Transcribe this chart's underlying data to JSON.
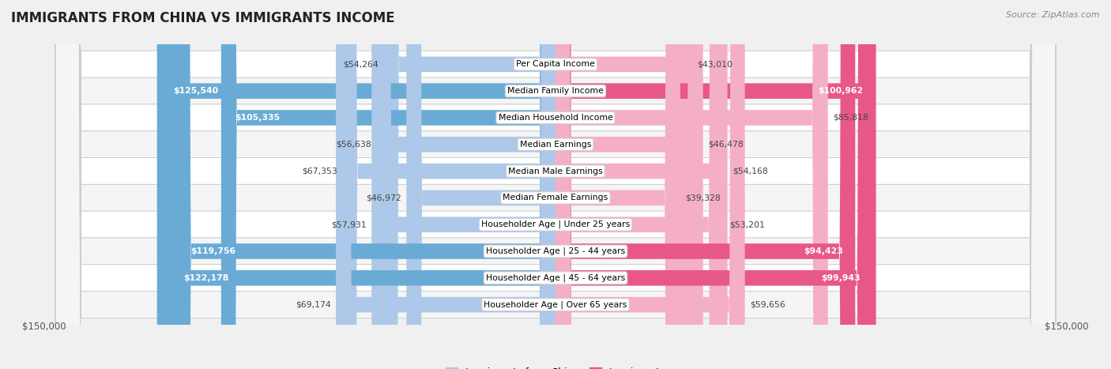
{
  "title": "IMMIGRANTS FROM CHINA VS IMMIGRANTS INCOME",
  "source": "Source: ZipAtlas.com",
  "categories": [
    "Per Capita Income",
    "Median Family Income",
    "Median Household Income",
    "Median Earnings",
    "Median Male Earnings",
    "Median Female Earnings",
    "Householder Age | Under 25 years",
    "Householder Age | 25 - 44 years",
    "Householder Age | 45 - 64 years",
    "Householder Age | Over 65 years"
  ],
  "china_values": [
    54264,
    125540,
    105335,
    56638,
    67353,
    46972,
    57931,
    119756,
    122178,
    69174
  ],
  "immigrant_values": [
    43010,
    100962,
    85818,
    46478,
    54168,
    39328,
    53201,
    94423,
    99943,
    59656
  ],
  "china_labels": [
    "$54,264",
    "$125,540",
    "$105,335",
    "$56,638",
    "$67,353",
    "$46,972",
    "$57,931",
    "$119,756",
    "$122,178",
    "$69,174"
  ],
  "immigrant_labels": [
    "$43,010",
    "$100,962",
    "$85,818",
    "$46,478",
    "$54,168",
    "$39,328",
    "$53,201",
    "$94,423",
    "$99,943",
    "$59,656"
  ],
  "china_color_low": "#adc8e8",
  "china_color_high": "#6aabd6",
  "immigrant_color_low": "#f5afc5",
  "immigrant_color_high": "#e8578a",
  "threshold": 90000,
  "max_val": 150000,
  "bar_height": 0.58,
  "background_color": "#f0f0f0",
  "row_bg_color": "#ffffff",
  "row_alt_color": "#f5f5f5",
  "legend_china": "Immigrants from China",
  "legend_immigrant": "Immigrants",
  "xlabel_left": "$150,000",
  "xlabel_right": "$150,000"
}
